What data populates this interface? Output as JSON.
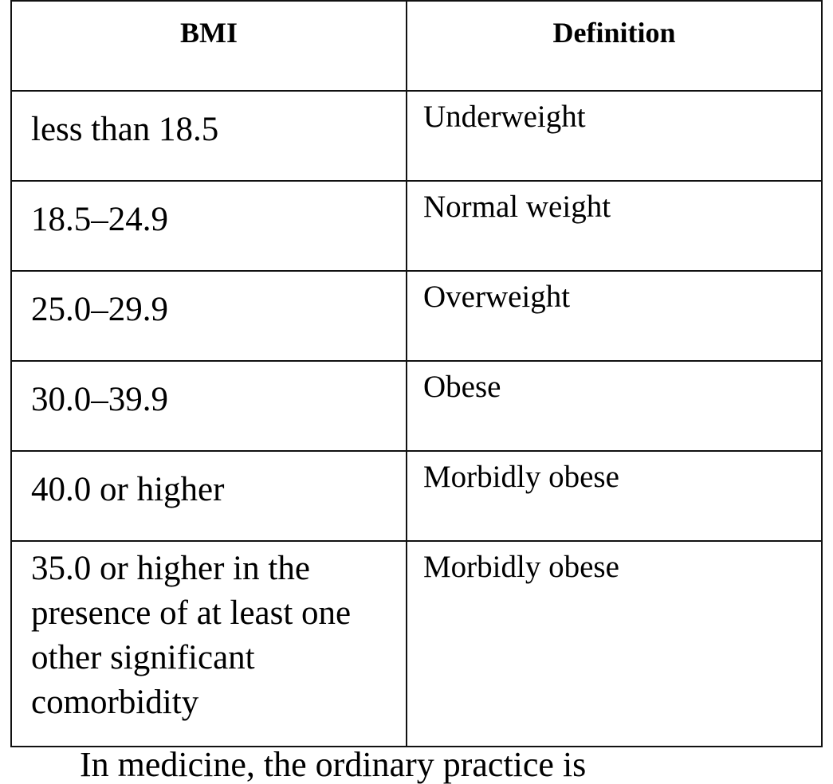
{
  "table": {
    "headers": {
      "bmi": "BMI",
      "definition": "Definition"
    },
    "rows": [
      {
        "bmi": "less than 18.5",
        "definition": "Underweight"
      },
      {
        "bmi": "18.5–24.9",
        "definition": "Normal weight"
      },
      {
        "bmi": "25.0–29.9",
        "definition": "Overweight"
      },
      {
        "bmi": "30.0–39.9",
        "definition": "Obese"
      },
      {
        "bmi": "40.0 or higher",
        "definition": "Morbidly obese"
      },
      {
        "bmi": "35.0 or higher in the presence of at least one other significant comorbidity",
        "definition": "Morbidly obese"
      }
    ]
  },
  "cutoff_text": "In medicine, the ordinary practice is"
}
